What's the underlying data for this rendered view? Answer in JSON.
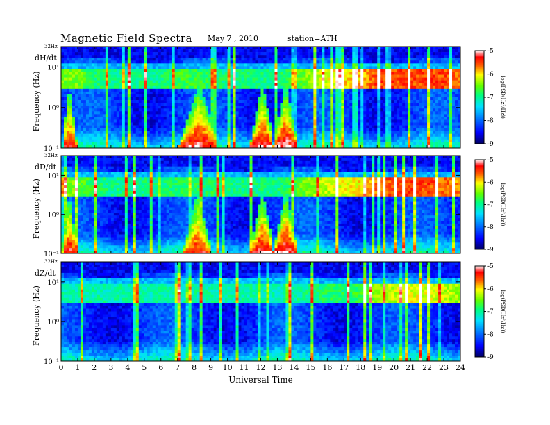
{
  "header": {
    "title": "Magnetic  Field  Spectra",
    "date": "May 7  , 2010",
    "station": "station=ATH"
  },
  "chart_data": [
    {
      "type": "heatmap",
      "panel": "dH/dt",
      "top_label": "32Hz",
      "ylabel": "Frequency  (Hz)",
      "y_scale": "log",
      "y_ticks": [
        {
          "value": 0.1,
          "label": "10⁻¹"
        },
        {
          "value": 1,
          "label": "10⁰"
        },
        {
          "value": 10,
          "label": "10¹"
        }
      ],
      "ylim": [
        0.1,
        32
      ],
      "xlim": [
        0,
        24
      ],
      "x_ticks": [
        "0",
        "1",
        "2",
        "3",
        "4",
        "5",
        "6",
        "7",
        "8",
        "9",
        "10",
        "11",
        "12",
        "13",
        "14",
        "15",
        "16",
        "17",
        "18",
        "19",
        "20",
        "21",
        "22",
        "23",
        "24"
      ],
      "colorbar": {
        "label": "log(PSD(Hz²/Hz))",
        "range": [
          -9,
          -5
        ],
        "ticks": [
          "-9",
          "-8",
          "-7",
          "-6",
          "-5"
        ]
      },
      "features": {
        "line_5hz_band_strength": [
          0.55,
          0.55,
          0.4,
          0.35,
          0.35,
          0.35,
          0.35,
          0.45,
          0.45,
          0.4,
          0.35,
          0.35,
          0.35,
          0.35,
          0.45,
          0.6,
          0.7,
          0.75,
          0.8,
          0.95,
          0.95,
          0.95,
          0.95,
          0.95,
          0.9
        ],
        "low_freq_events": [
          {
            "start": 0.2,
            "end": 1.0,
            "peak_time": 0.5,
            "strength": 0.9
          },
          {
            "start": 7.0,
            "end": 9.3,
            "peak_time": 8.3,
            "strength": 0.95
          },
          {
            "start": 11.3,
            "end": 12.7,
            "peak_time": 12.1,
            "strength": 0.95
          },
          {
            "start": 12.7,
            "end": 14.2,
            "peak_time": 13.5,
            "strength": 1.0
          }
        ]
      }
    },
    {
      "type": "heatmap",
      "panel": "dD/dt",
      "top_label": "32Hz",
      "ylabel": "Frequency  (Hz)",
      "y_scale": "log",
      "y_ticks": [
        {
          "value": 0.1,
          "label": "10⁻¹"
        },
        {
          "value": 1,
          "label": "10⁰"
        },
        {
          "value": 10,
          "label": "10¹"
        }
      ],
      "ylim": [
        0.1,
        32
      ],
      "xlim": [
        0,
        24
      ],
      "x_ticks": [
        "0",
        "1",
        "2",
        "3",
        "4",
        "5",
        "6",
        "7",
        "8",
        "9",
        "10",
        "11",
        "12",
        "13",
        "14",
        "15",
        "16",
        "17",
        "18",
        "19",
        "20",
        "21",
        "22",
        "23",
        "24"
      ],
      "colorbar": {
        "label": "log(PSD(Hz²/Hz))",
        "range": [
          -9,
          -5
        ],
        "ticks": [
          "-9",
          "-8",
          "-7",
          "-6",
          "-5"
        ]
      },
      "features": {
        "line_5hz_band_strength": [
          0.55,
          0.55,
          0.4,
          0.35,
          0.35,
          0.35,
          0.35,
          0.4,
          0.4,
          0.4,
          0.35,
          0.35,
          0.35,
          0.35,
          0.45,
          0.6,
          0.65,
          0.7,
          0.75,
          0.9,
          0.95,
          0.95,
          0.95,
          0.9,
          0.85
        ],
        "low_freq_events": [
          {
            "start": 0.2,
            "end": 1.0,
            "peak_time": 0.5,
            "strength": 0.9
          },
          {
            "start": 7.3,
            "end": 9.0,
            "peak_time": 8.2,
            "strength": 0.85
          },
          {
            "start": 11.3,
            "end": 12.7,
            "peak_time": 12.1,
            "strength": 0.95
          },
          {
            "start": 12.7,
            "end": 14.2,
            "peak_time": 13.5,
            "strength": 1.0
          }
        ]
      }
    },
    {
      "type": "heatmap",
      "panel": "dZ/dt",
      "top_label": "32Hz",
      "ylabel": "Frequency  (Hz)",
      "y_scale": "log",
      "y_ticks": [
        {
          "value": 0.1,
          "label": "10⁻¹"
        },
        {
          "value": 1,
          "label": "10⁰"
        },
        {
          "value": 10,
          "label": "10¹"
        }
      ],
      "ylim": [
        0.1,
        32
      ],
      "xlim": [
        0,
        24
      ],
      "x_ticks": [
        "0",
        "1",
        "2",
        "3",
        "4",
        "5",
        "6",
        "7",
        "8",
        "9",
        "10",
        "11",
        "12",
        "13",
        "14",
        "15",
        "16",
        "17",
        "18",
        "19",
        "20",
        "21",
        "22",
        "23",
        "24"
      ],
      "xlabel": "Universal  Time",
      "colorbar": {
        "label": "log(PSD(Hz²/Hz))",
        "range": [
          -9,
          -5
        ],
        "ticks": [
          "-9",
          "-8",
          "-7",
          "-6",
          "-5"
        ]
      },
      "features": {
        "line_5hz_band_strength": [
          0.3,
          0.3,
          0.3,
          0.3,
          0.3,
          0.3,
          0.3,
          0.3,
          0.3,
          0.3,
          0.3,
          0.3,
          0.3,
          0.3,
          0.3,
          0.35,
          0.4,
          0.4,
          0.45,
          0.6,
          0.65,
          0.7,
          0.7,
          0.65,
          0.6
        ],
        "low_freq_events": []
      }
    }
  ]
}
